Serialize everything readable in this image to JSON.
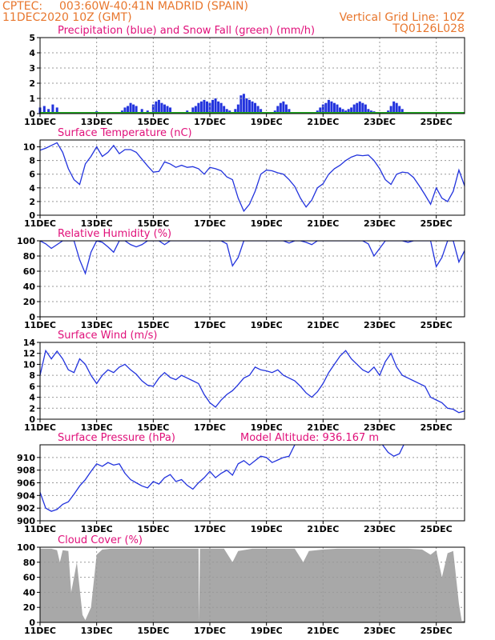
{
  "header": {
    "source": "CPTEC:",
    "location": "003:60W-40:41N  MADRID (SPAIN)",
    "run_time": "11DEC2020 10Z (GMT)",
    "grid_note": "Vertical Grid Line: 10Z",
    "model_code": "TQ0126L028"
  },
  "colors": {
    "line": "#2233dd",
    "snow": "#22aa22",
    "cloud": "#a8a8a8",
    "title": "#e0107a",
    "header": "#e8772e"
  },
  "x_axis": {
    "ticks": [
      {
        "day": 11,
        "label": "11DEC"
      },
      {
        "day": 13,
        "label": "13DEC"
      },
      {
        "day": 15,
        "label": "15DEC"
      },
      {
        "day": 17,
        "label": "17DEC"
      },
      {
        "day": 19,
        "label": "19DEC"
      },
      {
        "day": 21,
        "label": "21DEC"
      },
      {
        "day": 23,
        "label": "23DEC"
      },
      {
        "day": 25,
        "label": "25DEC"
      }
    ],
    "range_days": [
      11.0,
      26.0
    ]
  },
  "chart_data": [
    {
      "id": "precip",
      "type": "bar",
      "title": "Precipitation (blue) and Snow Fall (green) (mm/h)",
      "ylim": [
        0,
        5
      ],
      "yticks": [
        0,
        1,
        2,
        3,
        4,
        5
      ],
      "series": [
        {
          "name": "Precipitation (blue)",
          "color": "#2233dd",
          "x": [
            11.0,
            11.15,
            11.3,
            11.45,
            11.6,
            12.9,
            13.0,
            13.1,
            13.9,
            14.0,
            14.1,
            14.2,
            14.3,
            14.4,
            14.6,
            14.8,
            15.0,
            15.1,
            15.2,
            15.3,
            15.4,
            15.5,
            15.6,
            16.2,
            16.4,
            16.5,
            16.6,
            16.7,
            16.8,
            16.9,
            17.0,
            17.1,
            17.2,
            17.3,
            17.4,
            17.5,
            17.6,
            17.7,
            17.8,
            17.9,
            18.0,
            18.1,
            18.2,
            18.3,
            18.4,
            18.5,
            18.6,
            18.7,
            18.8,
            19.3,
            19.4,
            19.5,
            19.6,
            19.7,
            19.8,
            20.8,
            20.9,
            21.0,
            21.1,
            21.2,
            21.3,
            21.4,
            21.5,
            21.6,
            21.7,
            21.8,
            21.9,
            22.0,
            22.1,
            22.2,
            22.3,
            22.4,
            22.5,
            22.6,
            22.7,
            22.8,
            22.9,
            23.3,
            23.4,
            23.5,
            23.6,
            23.7,
            23.8
          ],
          "values": [
            0.4,
            0.5,
            0.3,
            0.6,
            0.4,
            0.1,
            0.15,
            0.1,
            0.2,
            0.4,
            0.5,
            0.7,
            0.6,
            0.5,
            0.3,
            0.2,
            0.6,
            0.8,
            0.9,
            0.7,
            0.6,
            0.5,
            0.4,
            0.2,
            0.4,
            0.5,
            0.7,
            0.8,
            0.9,
            0.8,
            0.7,
            0.9,
            1.0,
            0.8,
            0.7,
            0.5,
            0.3,
            0.2,
            0.1,
            0.3,
            0.6,
            1.2,
            1.3,
            1.0,
            0.9,
            0.8,
            0.7,
            0.5,
            0.3,
            0.2,
            0.5,
            0.7,
            0.8,
            0.6,
            0.3,
            0.2,
            0.4,
            0.6,
            0.7,
            0.9,
            0.8,
            0.7,
            0.6,
            0.4,
            0.3,
            0.2,
            0.3,
            0.4,
            0.6,
            0.7,
            0.8,
            0.7,
            0.6,
            0.3,
            0.2,
            0.15,
            0.1,
            0.2,
            0.5,
            0.8,
            0.7,
            0.5,
            0.3
          ]
        },
        {
          "name": "Snow Fall (green)",
          "color": "#22aa22",
          "x": [
            11.0,
            26.0
          ],
          "values": [
            0.05,
            0.05
          ]
        }
      ]
    },
    {
      "id": "temp",
      "type": "line",
      "title": "Surface Temperature (nC)",
      "ylim": [
        0,
        11
      ],
      "yticks": [
        0,
        2,
        4,
        6,
        8,
        10
      ],
      "series": [
        {
          "name": "",
          "color": "#2233dd",
          "x": [
            11.0,
            11.2,
            11.4,
            11.6,
            11.8,
            12.0,
            12.2,
            12.4,
            12.6,
            12.8,
            13.0,
            13.2,
            13.4,
            13.6,
            13.8,
            14.0,
            14.2,
            14.4,
            14.6,
            14.8,
            15.0,
            15.2,
            15.4,
            15.6,
            15.8,
            16.0,
            16.2,
            16.4,
            16.6,
            16.8,
            17.0,
            17.2,
            17.4,
            17.6,
            17.8,
            18.0,
            18.2,
            18.4,
            18.6,
            18.8,
            19.0,
            19.2,
            19.4,
            19.6,
            19.8,
            20.0,
            20.2,
            20.4,
            20.6,
            20.8,
            21.0,
            21.2,
            21.4,
            21.6,
            21.8,
            22.0,
            22.2,
            22.4,
            22.6,
            22.8,
            23.0,
            23.2,
            23.4,
            23.6,
            23.8,
            24.0,
            24.2,
            24.4,
            24.6,
            24.8,
            25.0,
            25.2,
            25.4,
            25.6,
            25.8,
            26.0
          ],
          "values": [
            9.5,
            9.8,
            10.2,
            10.6,
            9.2,
            6.8,
            5.2,
            4.5,
            7.5,
            8.6,
            10.0,
            8.6,
            9.2,
            10.2,
            9.0,
            9.6,
            9.6,
            9.2,
            8.2,
            7.2,
            6.3,
            6.4,
            7.8,
            7.5,
            7.0,
            7.3,
            7.0,
            7.1,
            6.8,
            6.0,
            7.0,
            6.8,
            6.5,
            5.6,
            5.2,
            2.5,
            0.6,
            1.6,
            3.5,
            6.0,
            6.6,
            6.5,
            6.2,
            6.0,
            5.2,
            4.2,
            2.5,
            1.2,
            2.2,
            4.0,
            4.6,
            6.0,
            6.8,
            7.3,
            8.0,
            8.5,
            8.8,
            8.7,
            8.8,
            8.0,
            6.8,
            5.2,
            4.5,
            6.0,
            6.3,
            6.2,
            5.5,
            4.3,
            3.0,
            1.6,
            4.0,
            2.5,
            2.0,
            3.5,
            6.6,
            4.3
          ]
        }
      ]
    },
    {
      "id": "rh",
      "type": "line",
      "title": "Relative Humidity (%)",
      "ylim": [
        0,
        100
      ],
      "yticks": [
        0,
        20,
        40,
        60,
        80,
        100
      ],
      "series": [
        {
          "name": "",
          "color": "#2233dd",
          "x": [
            11.0,
            11.2,
            11.4,
            11.6,
            11.8,
            12.0,
            12.2,
            12.4,
            12.6,
            12.8,
            13.0,
            13.2,
            13.4,
            13.6,
            13.8,
            14.0,
            14.2,
            14.4,
            14.6,
            14.8,
            15.0,
            15.2,
            15.4,
            15.6,
            15.8,
            16.0,
            16.2,
            16.4,
            16.6,
            16.8,
            17.0,
            17.2,
            17.4,
            17.6,
            17.8,
            18.0,
            18.2,
            18.4,
            18.6,
            18.8,
            19.0,
            19.2,
            19.4,
            19.6,
            19.8,
            20.0,
            20.2,
            20.4,
            20.6,
            20.8,
            21.0,
            21.2,
            21.4,
            21.6,
            21.8,
            22.0,
            22.2,
            22.4,
            22.6,
            22.8,
            23.0,
            23.2,
            23.4,
            23.6,
            23.8,
            24.0,
            24.2,
            24.4,
            24.6,
            24.8,
            25.0,
            25.2,
            25.4,
            25.6,
            25.8,
            26.0
          ],
          "values": [
            100,
            96,
            90,
            95,
            100,
            100,
            100,
            75,
            57,
            85,
            100,
            98,
            92,
            85,
            100,
            100,
            95,
            92,
            95,
            100,
            100,
            100,
            95,
            100,
            100,
            100,
            100,
            100,
            100,
            100,
            100,
            100,
            100,
            96,
            67,
            78,
            100,
            100,
            100,
            100,
            100,
            100,
            100,
            100,
            97,
            100,
            100,
            98,
            95,
            100,
            100,
            100,
            100,
            100,
            100,
            100,
            100,
            100,
            96,
            80,
            90,
            100,
            100,
            100,
            100,
            98,
            100,
            100,
            100,
            100,
            66,
            78,
            100,
            100,
            72,
            87
          ]
        }
      ]
    },
    {
      "id": "wind",
      "type": "line",
      "title": "Surface Wind (m/s)",
      "ylim": [
        0,
        14
      ],
      "yticks": [
        0,
        2,
        4,
        6,
        8,
        10,
        12,
        14
      ],
      "series": [
        {
          "name": "",
          "color": "#2233dd",
          "x": [
            11.0,
            11.2,
            11.4,
            11.6,
            11.8,
            12.0,
            12.2,
            12.4,
            12.6,
            12.8,
            13.0,
            13.2,
            13.4,
            13.6,
            13.8,
            14.0,
            14.2,
            14.4,
            14.6,
            14.8,
            15.0,
            15.2,
            15.4,
            15.6,
            15.8,
            16.0,
            16.2,
            16.4,
            16.6,
            16.8,
            17.0,
            17.2,
            17.4,
            17.6,
            17.8,
            18.0,
            18.2,
            18.4,
            18.6,
            18.8,
            19.0,
            19.2,
            19.4,
            19.6,
            19.8,
            20.0,
            20.2,
            20.4,
            20.6,
            20.8,
            21.0,
            21.2,
            21.4,
            21.6,
            21.8,
            22.0,
            22.2,
            22.4,
            22.6,
            22.8,
            23.0,
            23.2,
            23.4,
            23.6,
            23.8,
            24.0,
            24.2,
            24.4,
            24.6,
            24.8,
            25.0,
            25.2,
            25.4,
            25.6,
            25.8,
            26.0
          ],
          "values": [
            8,
            12.5,
            11,
            12.4,
            11,
            9,
            8.5,
            11,
            10,
            8,
            6.5,
            8,
            9,
            8.5,
            9.5,
            10,
            9,
            8.2,
            7,
            6.2,
            6.0,
            7.5,
            8.5,
            7.6,
            7.2,
            8,
            7.5,
            7,
            6.5,
            4.5,
            3.0,
            2.2,
            3.5,
            4.5,
            5.2,
            6.3,
            7.5,
            8.0,
            9.5,
            9.0,
            8.8,
            8.5,
            9.0,
            8.0,
            7.5,
            7.0,
            6.0,
            4.8,
            4.0,
            5.0,
            6.5,
            8.5,
            10.0,
            11.5,
            12.5,
            11.0,
            10.0,
            9.0,
            8.5,
            9.5,
            8.0,
            10.5,
            12.0,
            9.5,
            8.0,
            7.5,
            7.0,
            6.5,
            6.0,
            4.0,
            3.5,
            3.0,
            2.0,
            1.8,
            1.2,
            1.5
          ]
        }
      ]
    },
    {
      "id": "pressure",
      "type": "line",
      "title": "Surface Pressure (hPa)",
      "annotation": "Model Altitude: 936.167  m",
      "ylim": [
        900,
        912
      ],
      "yticks": [
        900,
        902,
        904,
        906,
        908,
        910
      ],
      "series": [
        {
          "name": "",
          "color": "#2233dd",
          "x": [
            11.0,
            11.2,
            11.4,
            11.6,
            11.8,
            12.0,
            12.2,
            12.4,
            12.6,
            12.8,
            13.0,
            13.2,
            13.4,
            13.6,
            13.8,
            14.0,
            14.2,
            14.4,
            14.6,
            14.8,
            15.0,
            15.2,
            15.4,
            15.6,
            15.8,
            16.0,
            16.2,
            16.4,
            16.6,
            16.8,
            17.0,
            17.2,
            17.4,
            17.6,
            17.8,
            18.0,
            18.2,
            18.4,
            18.6,
            18.8,
            19.0,
            19.2,
            19.4,
            19.6,
            19.8,
            20.0
          ],
          "values": [
            904.5,
            902.0,
            901.5,
            901.8,
            902.6,
            903.0,
            904.2,
            905.5,
            906.5,
            907.8,
            909.0,
            908.6,
            909.2,
            908.8,
            909.0,
            907.5,
            906.5,
            906.0,
            905.5,
            905.2,
            906.2,
            905.8,
            906.8,
            907.3,
            906.2,
            906.5,
            905.6,
            905.0,
            906.0,
            906.8,
            907.8,
            906.8,
            907.5,
            908.0,
            907.2,
            909.0,
            909.5,
            908.8,
            909.5,
            910.2,
            910.0,
            909.2,
            909.6,
            910.0,
            910.2,
            912.0
          ]
        },
        {
          "name": "",
          "color": "#2233dd",
          "x": [
            23.1,
            23.3,
            23.5,
            23.7,
            23.85
          ],
          "values": [
            912.0,
            910.8,
            910.2,
            910.6,
            912.0
          ]
        }
      ]
    },
    {
      "id": "cloud",
      "type": "area",
      "title": "Cloud Cover (%)",
      "ylim": [
        0,
        100
      ],
      "yticks": [
        0,
        20,
        40,
        60,
        80,
        100
      ],
      "series": [
        {
          "name": "",
          "color": "#a8a8a8",
          "x": [
            11.0,
            11.4,
            11.6,
            11.7,
            11.8,
            12.0,
            12.1,
            12.3,
            12.5,
            12.6,
            12.8,
            13.0,
            13.2,
            13.5,
            14.0,
            14.5,
            15.0,
            15.5,
            16.0,
            16.5,
            16.6,
            16.62,
            16.65,
            17.0,
            17.5,
            17.8,
            18.0,
            18.5,
            19.0,
            19.5,
            20.0,
            20.3,
            20.5,
            21.0,
            21.5,
            22.0,
            22.5,
            23.0,
            23.5,
            24.0,
            24.5,
            24.8,
            25.0,
            25.2,
            25.4,
            25.6,
            25.8,
            25.9,
            26.0
          ],
          "values": [
            98,
            98,
            96,
            80,
            96,
            95,
            40,
            80,
            10,
            3,
            20,
            90,
            97,
            98,
            98,
            98,
            98,
            98,
            98,
            98,
            98,
            0,
            98,
            98,
            98,
            80,
            95,
            98,
            98,
            98,
            98,
            80,
            95,
            97,
            98,
            98,
            98,
            98,
            98,
            98,
            97,
            90,
            96,
            60,
            92,
            95,
            25,
            2,
            2
          ]
        }
      ]
    }
  ]
}
